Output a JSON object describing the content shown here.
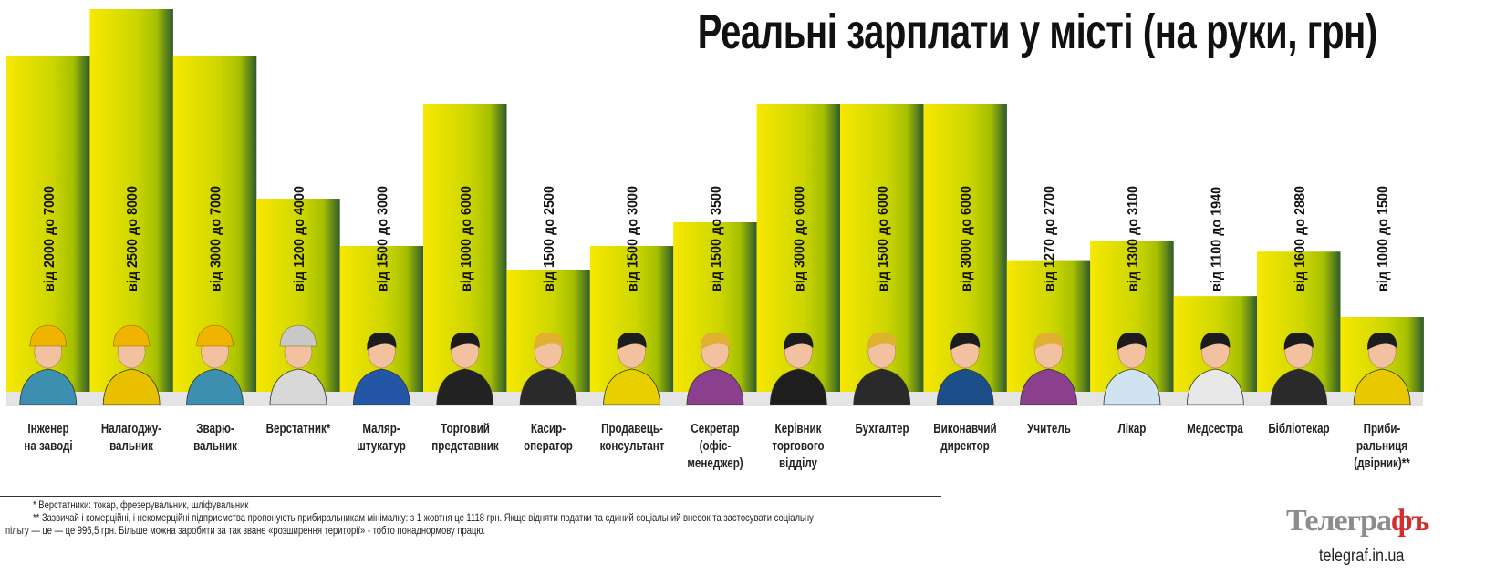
{
  "title": "Реальні зарплати у місті (на руки, грн)",
  "chart_data": {
    "type": "bar",
    "title": "Реальні зарплати у місті (на руки, грн)",
    "xlabel": "",
    "ylabel": "",
    "ylim": [
      0,
      8000
    ],
    "grid": false,
    "categories": [
      "Інженер\nна заводі",
      "Налагоджу-\nвальник",
      "Зварю-\nвальник",
      "Верстатник*",
      "Маляр-\nштукатур",
      "Торговий\nпредставник",
      "Касир-\nоператор",
      "Продавець-\nконсультант",
      "Секретар\n(офіс-\nменеджер)",
      "Керівник\nторгового\nвідділу",
      "Бухгалтер",
      "Виконавчий\nдиректор",
      "Учитель",
      "Лікар",
      "Медсестра",
      "Бібліотекар",
      "Приби-\nральниця\n(двірник)**"
    ],
    "min_values": [
      2000,
      2500,
      3000,
      1200,
      1500,
      1000,
      1500,
      1500,
      1500,
      3000,
      1500,
      3000,
      1270,
      1300,
      1100,
      1600,
      1000
    ],
    "values": [
      7000,
      8000,
      7000,
      4000,
      3000,
      6000,
      2500,
      3000,
      3500,
      6000,
      6000,
      6000,
      2700,
      3100,
      1940,
      2880,
      1500
    ],
    "data_labels": [
      "від 2000 до 7000",
      "від 2500 до 8000",
      "від 3000 до 7000",
      "від 1200 до 4000",
      "від 1500 до 3000",
      "від 1000 до 6000",
      "від 1500 до 2500",
      "від 1500 до 3000",
      "від 1500 до 3500",
      "від 3000 до 6000",
      "від 1500 до 6000",
      "від 3000 до 6000",
      "від 1270 до 2700",
      "від 1300 до 3100",
      "від 1100 до 1940",
      "від 1600 до 2880",
      "від 1000 до 1500"
    ],
    "icons": [
      "engineer-hardhat-icon",
      "adjuster-hardhat-gear-icon",
      "welder-hardhat-icon",
      "machinist-helmet-icon",
      "painter-color-swatch-icon",
      "sales-rep-handshake-icon",
      "cashier-coins-icon",
      "sales-consultant-icon",
      "secretary-phone-icon",
      "sales-manager-icon",
      "accountant-coins-icon",
      "executive-director-document-icon",
      "teacher-blackboard-icon",
      "doctor-icon",
      "nurse-syringe-icon",
      "librarian-books-icon",
      "cleaner-cap-icon"
    ],
    "shirt_colors": [
      "#3d8fb0",
      "#e8c000",
      "#3d8fb0",
      "#d8d8d8",
      "#2456a8",
      "#222222",
      "#2a2a2a",
      "#e8d000",
      "#8a3f8f",
      "#1e1e1e",
      "#2a2a2a",
      "#1c4f8a",
      "#8a3f8f",
      "#cfe3f0",
      "#e8e8e8",
      "#2a2a2a",
      "#e8c800"
    ],
    "hardhat": [
      true,
      true,
      true,
      true,
      false,
      false,
      false,
      false,
      false,
      false,
      false,
      false,
      false,
      false,
      false,
      false,
      false
    ],
    "colors": {
      "bar_light": "#f7e800",
      "bar_mid": "#c6d300",
      "bar_dark": "#2f5b2c",
      "floor": "#e4e4e4"
    }
  },
  "footnotes": {
    "note1": "* Верстатники: токар, фрезерувальник, шліфувальник",
    "note2_line1": "** Зазвичай і комерційні, і некомерційні підприємства пропонують прибиральникам мінімалку: з 1 жовтня це 1118 грн. Якщо відняти податки та єдиний соціальний внесок та застосувати соціальну",
    "note2_line2": "пільгу — це — це 996,5  грн. Більше можна заробити за так зване «розширення території» - тобто понаднормову працю."
  },
  "logo": {
    "text": "Телеграфъ",
    "site": "telegraf.in.ua"
  }
}
